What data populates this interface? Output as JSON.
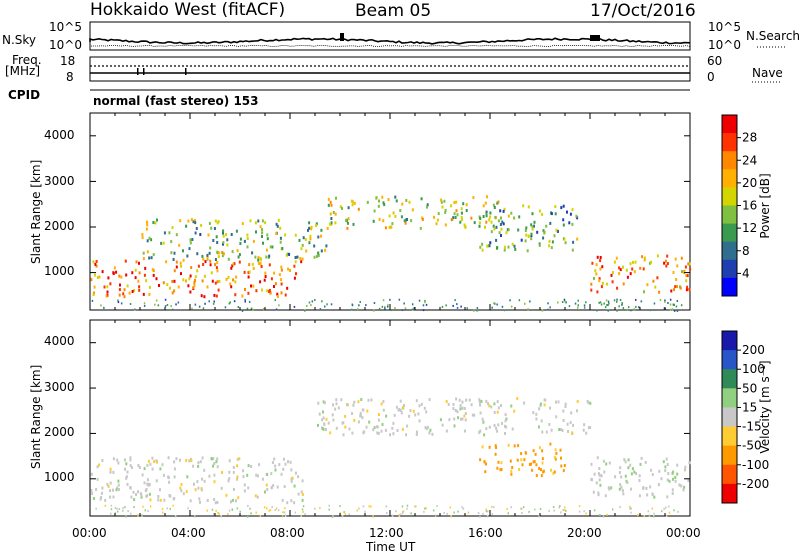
{
  "header": {
    "radar": "Hokkaido West (fitACF)",
    "beam": "Beam 05",
    "date": "17/Oct/2016"
  },
  "top_panels": {
    "nsky_label": "N.Sky",
    "nsearch_label": "N.Search",
    "noise_ticks_left": [
      "10^5",
      "10^0"
    ],
    "noise_ticks_right": [
      "10^5",
      "10^0"
    ],
    "freq_label": "Freq.",
    "freq_unit": "[MHz]",
    "freq_ticks": [
      "18",
      "8"
    ],
    "nave_ticks": [
      "60",
      "0"
    ],
    "nave_label": "Nave",
    "cpid_label": "CPID",
    "cpid_text": "normal (fast stereo) 153"
  },
  "axes": {
    "xlabel": "Time UT",
    "ylabel": "Slant Range [km]",
    "x_ticks": [
      "00:00",
      "04:00",
      "08:00",
      "12:00",
      "16:00",
      "20:00",
      "00:00"
    ],
    "y_ticks": [
      "4000",
      "3000",
      "2000",
      "1000"
    ]
  },
  "chart_data": [
    {
      "type": "heatmap",
      "title": "Power",
      "colorbar_label": "Power [dB]",
      "x_range_hours": [
        0,
        24
      ],
      "y_range_km": [
        180,
        4500
      ],
      "colorbar_ticks": [
        "28",
        "24",
        "20",
        "16",
        "12",
        "8",
        "4"
      ],
      "colorbar_colors": [
        "#ee0000",
        "#ff3300",
        "#ff8800",
        "#ffb000",
        "#d4d400",
        "#80c040",
        "#3a9a50",
        "#2f6e8c",
        "#1f3fb0",
        "#0000ff"
      ],
      "bands": [
        {
          "t_start": 0.0,
          "t_end": 8.5,
          "range_low": 500,
          "range_high": 1300,
          "power_db": 26
        },
        {
          "t_start": 2.0,
          "t_end": 9.5,
          "range_low": 1300,
          "range_high": 2200,
          "power_db": 14
        },
        {
          "t_start": 9.5,
          "t_end": 16.5,
          "range_low": 2000,
          "range_high": 2700,
          "power_db": 16
        },
        {
          "t_start": 15.5,
          "t_end": 19.5,
          "range_low": 1500,
          "range_high": 2500,
          "power_db": 12
        },
        {
          "t_start": 20.0,
          "t_end": 24.0,
          "range_low": 600,
          "range_high": 1400,
          "power_db": 24
        }
      ]
    },
    {
      "type": "heatmap",
      "title": "Velocity",
      "colorbar_label": "Velocity [m s⁻¹]",
      "x_range_hours": [
        0,
        24
      ],
      "y_range_km": [
        180,
        4500
      ],
      "colorbar_ticks": [
        "200",
        "100",
        "50",
        "15",
        "-15",
        "-50",
        "-100",
        "-200"
      ],
      "colorbar_colors": [
        "#1818aa",
        "#2855c8",
        "#2e8b57",
        "#90d080",
        "#c8c8c8",
        "#ffcc33",
        "#ff9900",
        "#ff5500",
        "#ee0000"
      ],
      "bands": [
        {
          "t_start": 0.0,
          "t_end": 8.5,
          "range_low": 500,
          "range_high": 1500,
          "velocity": 0
        },
        {
          "t_start": 9.0,
          "t_end": 20.0,
          "range_low": 2000,
          "range_high": 2800,
          "velocity": 0
        },
        {
          "t_start": 15.5,
          "t_end": 19.0,
          "range_low": 1100,
          "range_high": 1800,
          "velocity": -60
        },
        {
          "t_start": 20.0,
          "t_end": 24.0,
          "range_low": 600,
          "range_high": 1500,
          "velocity": 5
        }
      ]
    }
  ]
}
